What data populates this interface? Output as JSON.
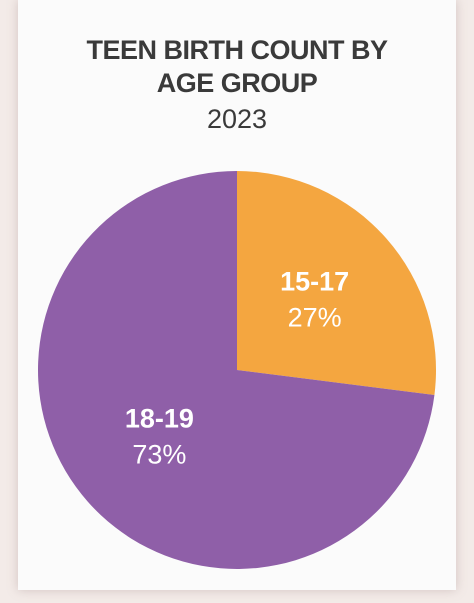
{
  "chart_data": {
    "type": "pie",
    "title": "TEEN BIRTH COUNT BY AGE GROUP",
    "subtitle": "2023",
    "categories": [
      "15-17",
      "18-19"
    ],
    "values": [
      27,
      73
    ],
    "value_labels": [
      "27%",
      "73%"
    ],
    "colors": [
      "#f4a640",
      "#8f5fa8"
    ]
  }
}
